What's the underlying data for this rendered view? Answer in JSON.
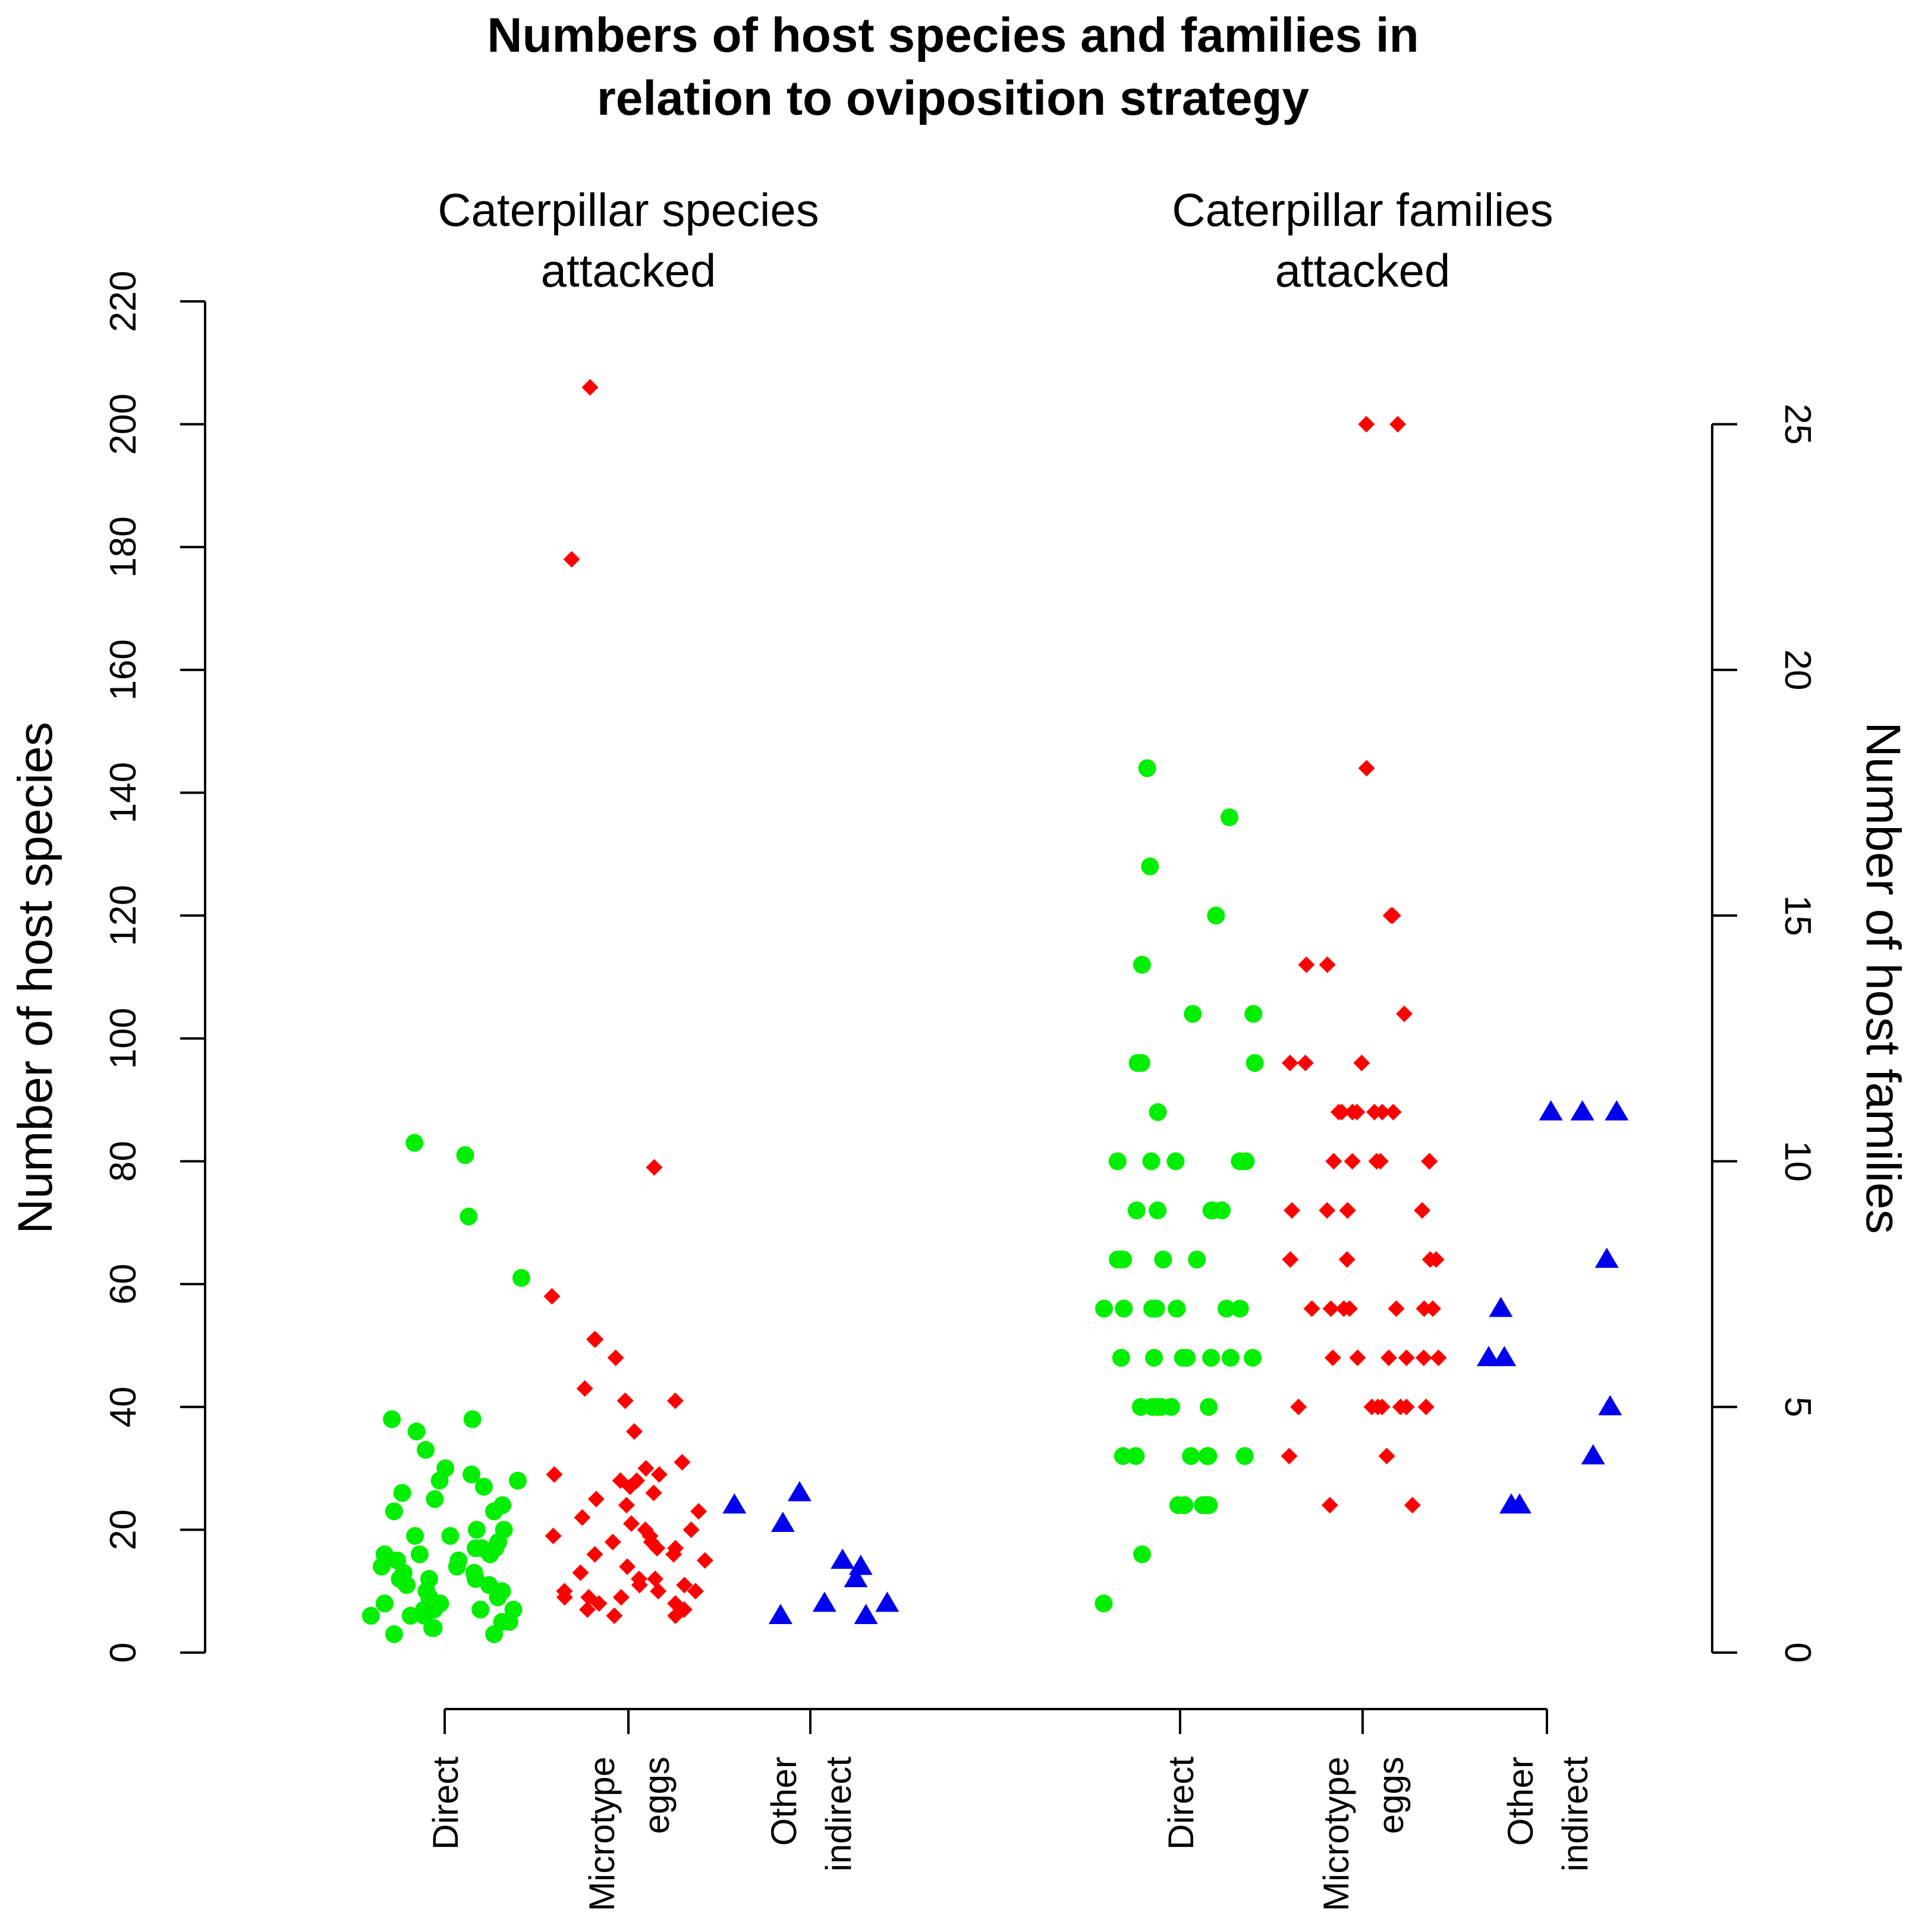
{
  "chart_data": {
    "type": "scatter",
    "title": [
      "Numbers of host species and families in",
      "relation to oviposition strategy"
    ],
    "panels": [
      {
        "name": "species",
        "subtitle": [
          "Caterpillar species",
          "attacked"
        ],
        "ylabel": "Number of host species",
        "ylim": [
          0,
          220
        ],
        "ticks": [
          "0",
          "20",
          "40",
          "60",
          "80",
          "100",
          "120",
          "140",
          "160",
          "180",
          "200",
          "220"
        ],
        "categories": [
          {
            "label_lines": [
              "Direct"
            ]
          },
          {
            "label_lines": [
              "Microtype",
              "eggs"
            ]
          },
          {
            "label_lines": [
              "Other",
              "indirect"
            ]
          }
        ],
        "series": [
          {
            "name": "Direct",
            "marker": "circle",
            "color": "#00ee00",
            "values": [
              71,
              83,
              81,
              61,
              38,
              29,
              23,
              20,
              20,
              17,
              17,
              16,
              16,
              15,
              14,
              13,
              12,
              11,
              10,
              9,
              8,
              8,
              7,
              7,
              6,
              6,
              5,
              5,
              4,
              4,
              3,
              3,
              38,
              36,
              33,
              30,
              28,
              28,
              27,
              26,
              25,
              24,
              23,
              19,
              19,
              18,
              17,
              16,
              15,
              14,
              13,
              12,
              12,
              11,
              10,
              9,
              8,
              7,
              7,
              6
            ]
          },
          {
            "name": "Microtype eggs",
            "marker": "diamond",
            "color": "#ff0000",
            "values": [
              206,
              178,
              79,
              58,
              51,
              51,
              48,
              43,
              41,
              41,
              36,
              31,
              30,
              29,
              29,
              28,
              28,
              27,
              26,
              25,
              24,
              23,
              22,
              21,
              20,
              20,
              19,
              19,
              18,
              18,
              17,
              17,
              16,
              16,
              15,
              14,
              13,
              12,
              12,
              11,
              11,
              10,
              10,
              10,
              9,
              9,
              9,
              8,
              8,
              7,
              7,
              6,
              6
            ]
          },
          {
            "name": "Other indirect",
            "marker": "triangle",
            "color": "#0000ee",
            "values": [
              26,
              24,
              21,
              15,
              14,
              12,
              8,
              8,
              6,
              6
            ]
          }
        ]
      },
      {
        "name": "families",
        "subtitle": [
          "Caterpillar families",
          "attacked"
        ],
        "ylabel": "Number of host families",
        "ylim": [
          0,
          25
        ],
        "ticks": [
          "0",
          "5",
          "10",
          "15",
          "20",
          "25"
        ],
        "categories": [
          {
            "label_lines": [
              "Direct"
            ]
          },
          {
            "label_lines": [
              "Microtype",
              "eggs"
            ]
          },
          {
            "label_lines": [
              "Other",
              "indirect"
            ]
          }
        ],
        "series": [
          {
            "name": "Direct",
            "marker": "circle",
            "color": "#00ee00",
            "values": [
              1,
              2,
              3,
              3,
              3,
              3,
              3,
              3,
              4,
              4,
              4,
              4,
              4,
              4,
              5,
              5,
              5,
              5,
              5,
              5,
              6,
              6,
              6,
              6,
              6,
              6,
              6,
              7,
              7,
              7,
              7,
              7,
              7,
              7,
              7,
              8,
              8,
              8,
              8,
              8,
              8,
              9,
              9,
              9,
              9,
              9,
              10,
              10,
              10,
              10,
              10,
              11,
              12,
              12,
              12,
              13,
              13,
              14,
              15,
              16,
              17,
              18
            ]
          },
          {
            "name": "Microtype eggs",
            "marker": "diamond",
            "color": "#ff0000",
            "values": [
              25,
              25,
              18,
              15,
              15,
              14,
              14,
              13,
              12,
              12,
              12,
              11,
              11,
              11,
              11,
              11,
              11,
              11,
              10,
              10,
              10,
              10,
              10,
              10,
              9,
              9,
              9,
              9,
              9,
              8,
              8,
              8,
              8,
              7,
              7,
              7,
              7,
              7,
              7,
              7,
              6,
              6,
              6,
              6,
              6,
              6,
              5,
              5,
              5,
              5,
              5,
              5,
              5,
              4,
              4,
              3,
              3
            ]
          },
          {
            "name": "Other indirect",
            "marker": "triangle",
            "color": "#0000ee",
            "values": [
              11,
              11,
              11,
              8,
              7,
              6,
              6,
              5,
              4,
              3,
              3
            ]
          }
        ]
      }
    ]
  }
}
